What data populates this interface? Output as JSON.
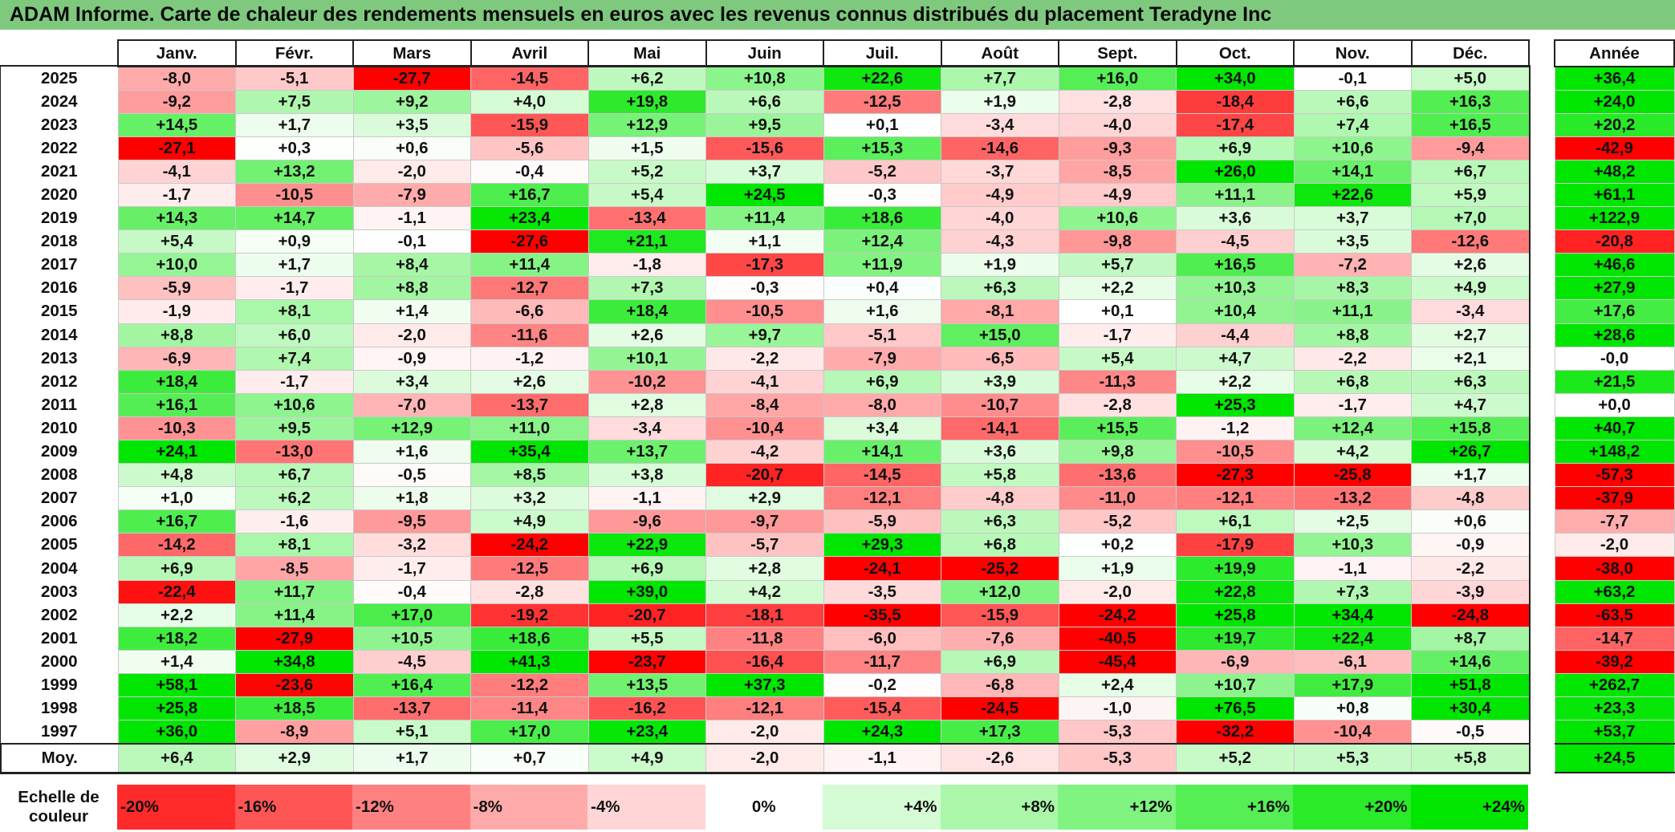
{
  "title": "ADAM Informe. Carte de chaleur des rendements mensuels en euros avec les revenus connus distribués du placement Teradyne Inc",
  "year_header": "Année",
  "avg_label": "Moy.",
  "scale_label": "Echelle de couleur",
  "colors": {
    "negative": "#ff0000",
    "zero": "#ffffff",
    "positive": "#00e600",
    "border": "#222222",
    "title_bar": "#7fc97f"
  },
  "chart_data": {
    "type": "heatmap",
    "title": "ADAM Informe. Carte de chaleur des rendements mensuels en euros avec les revenus connus distribués du placement Teradyne Inc",
    "columns": [
      "Janv.",
      "Févr.",
      "Mars",
      "Avril",
      "Mai",
      "Juin",
      "Juil.",
      "Août",
      "Sept.",
      "Oct.",
      "Nov.",
      "Déc."
    ],
    "rows": [
      {
        "year": "2025",
        "values": [
          "-8,0",
          "-5,1",
          "-27,7",
          "-14,5",
          "+6,2",
          "+10,8",
          "+22,6",
          "+7,7",
          "+16,0",
          "+34,0",
          "-0,1",
          "+5,0"
        ],
        "annual": "+36,4"
      },
      {
        "year": "2024",
        "values": [
          "-9,2",
          "+7,5",
          "+9,2",
          "+4,0",
          "+19,8",
          "+6,6",
          "-12,5",
          "+1,9",
          "-2,8",
          "-18,4",
          "+6,6",
          "+16,3"
        ],
        "annual": "+24,0"
      },
      {
        "year": "2023",
        "values": [
          "+14,5",
          "+1,7",
          "+3,5",
          "-15,9",
          "+12,9",
          "+9,5",
          "+0,1",
          "-3,4",
          "-4,0",
          "-17,4",
          "+7,4",
          "+16,5"
        ],
        "annual": "+20,2"
      },
      {
        "year": "2022",
        "values": [
          "-27,1",
          "+0,3",
          "+0,6",
          "-5,6",
          "+1,5",
          "-15,6",
          "+15,3",
          "-14,6",
          "-9,3",
          "+6,9",
          "+10,6",
          "-9,4"
        ],
        "annual": "-42,9"
      },
      {
        "year": "2021",
        "values": [
          "-4,1",
          "+13,2",
          "-2,0",
          "-0,4",
          "+5,2",
          "+3,7",
          "-5,2",
          "-3,7",
          "-8,5",
          "+26,0",
          "+14,1",
          "+6,7"
        ],
        "annual": "+48,2"
      },
      {
        "year": "2020",
        "values": [
          "-1,7",
          "-10,5",
          "-7,9",
          "+16,7",
          "+5,4",
          "+24,5",
          "-0,3",
          "-4,9",
          "-4,9",
          "+11,1",
          "+22,6",
          "+5,9"
        ],
        "annual": "+61,1"
      },
      {
        "year": "2019",
        "values": [
          "+14,3",
          "+14,7",
          "-1,1",
          "+23,4",
          "-13,4",
          "+11,4",
          "+18,6",
          "-4,0",
          "+10,6",
          "+3,6",
          "+3,7",
          "+7,0"
        ],
        "annual": "+122,9"
      },
      {
        "year": "2018",
        "values": [
          "+5,4",
          "+0,9",
          "-0,1",
          "-27,6",
          "+21,1",
          "+1,1",
          "+12,4",
          "-4,3",
          "-9,8",
          "-4,5",
          "+3,5",
          "-12,6"
        ],
        "annual": "-20,8"
      },
      {
        "year": "2017",
        "values": [
          "+10,0",
          "+1,7",
          "+8,4",
          "+11,4",
          "-1,8",
          "-17,3",
          "+11,9",
          "+1,9",
          "+5,7",
          "+16,5",
          "-7,2",
          "+2,6"
        ],
        "annual": "+46,6"
      },
      {
        "year": "2016",
        "values": [
          "-5,9",
          "-1,7",
          "+8,8",
          "-12,7",
          "+7,3",
          "-0,3",
          "+0,4",
          "+6,3",
          "+2,2",
          "+10,3",
          "+8,3",
          "+4,9"
        ],
        "annual": "+27,9"
      },
      {
        "year": "2015",
        "values": [
          "-1,9",
          "+8,1",
          "+1,4",
          "-6,6",
          "+18,4",
          "-10,5",
          "+1,6",
          "-8,1",
          "+0,1",
          "+10,4",
          "+11,1",
          "-3,4"
        ],
        "annual": "+17,6"
      },
      {
        "year": "2014",
        "values": [
          "+8,8",
          "+6,0",
          "-2,0",
          "-11,6",
          "+2,6",
          "+9,7",
          "-5,1",
          "+15,0",
          "-1,7",
          "-4,4",
          "+8,8",
          "+2,7"
        ],
        "annual": "+28,6"
      },
      {
        "year": "2013",
        "values": [
          "-6,9",
          "+7,4",
          "-0,9",
          "-1,2",
          "+10,1",
          "-2,2",
          "-7,9",
          "-6,5",
          "+5,4",
          "+4,7",
          "-2,2",
          "+2,1"
        ],
        "annual": "-0,0"
      },
      {
        "year": "2012",
        "values": [
          "+18,4",
          "-1,7",
          "+3,4",
          "+2,6",
          "-10,2",
          "-4,1",
          "+6,9",
          "+3,9",
          "-11,3",
          "+2,2",
          "+6,8",
          "+6,3"
        ],
        "annual": "+21,5"
      },
      {
        "year": "2011",
        "values": [
          "+16,1",
          "+10,6",
          "-7,0",
          "-13,7",
          "+2,8",
          "-8,4",
          "-8,0",
          "-10,7",
          "-2,8",
          "+25,3",
          "-1,7",
          "+4,7"
        ],
        "annual": "+0,0"
      },
      {
        "year": "2010",
        "values": [
          "-10,3",
          "+9,5",
          "+12,9",
          "+11,0",
          "-3,4",
          "-10,4",
          "+3,4",
          "-14,1",
          "+15,5",
          "-1,2",
          "+12,4",
          "+15,8"
        ],
        "annual": "+40,7"
      },
      {
        "year": "2009",
        "values": [
          "+24,1",
          "-13,0",
          "+1,6",
          "+35,4",
          "+13,7",
          "-4,2",
          "+14,1",
          "+3,6",
          "+9,8",
          "-10,5",
          "+4,2",
          "+26,7"
        ],
        "annual": "+148,2"
      },
      {
        "year": "2008",
        "values": [
          "+4,8",
          "+6,7",
          "-0,5",
          "+8,5",
          "+3,8",
          "-20,7",
          "-14,5",
          "+5,8",
          "-13,6",
          "-27,3",
          "-25,8",
          "+1,7"
        ],
        "annual": "-57,3"
      },
      {
        "year": "2007",
        "values": [
          "+1,0",
          "+6,2",
          "+1,8",
          "+3,2",
          "-1,1",
          "+2,9",
          "-12,1",
          "-4,8",
          "-11,0",
          "-12,1",
          "-13,2",
          "-4,8"
        ],
        "annual": "-37,9"
      },
      {
        "year": "2006",
        "values": [
          "+16,7",
          "-1,6",
          "-9,5",
          "+4,9",
          "-9,6",
          "-9,7",
          "-5,9",
          "+6,3",
          "-5,2",
          "+6,1",
          "+2,5",
          "+0,6"
        ],
        "annual": "-7,7"
      },
      {
        "year": "2005",
        "values": [
          "-14,2",
          "+8,1",
          "-3,2",
          "-24,2",
          "+22,9",
          "-5,7",
          "+29,3",
          "+6,8",
          "+0,2",
          "-17,9",
          "+10,3",
          "-0,9"
        ],
        "annual": "-2,0"
      },
      {
        "year": "2004",
        "values": [
          "+6,9",
          "-8,5",
          "-1,7",
          "-12,5",
          "+6,9",
          "+2,8",
          "-24,1",
          "-25,2",
          "+1,9",
          "+19,9",
          "-1,1",
          "-2,2"
        ],
        "annual": "-38,0"
      },
      {
        "year": "2003",
        "values": [
          "-22,4",
          "+11,7",
          "-0,4",
          "-2,8",
          "+39,0",
          "+4,2",
          "-3,5",
          "+12,0",
          "-2,0",
          "+22,8",
          "+7,3",
          "-3,9"
        ],
        "annual": "+63,2"
      },
      {
        "year": "2002",
        "values": [
          "+2,2",
          "+11,4",
          "+17,0",
          "-19,2",
          "-20,7",
          "-18,1",
          "-35,5",
          "-15,9",
          "-24,2",
          "+25,8",
          "+34,4",
          "-24,8"
        ],
        "annual": "-63,5"
      },
      {
        "year": "2001",
        "values": [
          "+18,2",
          "-27,9",
          "+10,5",
          "+18,6",
          "+5,5",
          "-11,8",
          "-6,0",
          "-7,6",
          "-40,5",
          "+19,7",
          "+22,4",
          "+8,7"
        ],
        "annual": "-14,7"
      },
      {
        "year": "2000",
        "values": [
          "+1,4",
          "+34,8",
          "-4,5",
          "+41,3",
          "-23,7",
          "-16,4",
          "-11,7",
          "+6,9",
          "-45,4",
          "-6,9",
          "-6,1",
          "+14,6"
        ],
        "annual": "-39,2"
      },
      {
        "year": "1999",
        "values": [
          "+58,1",
          "-23,6",
          "+16,4",
          "-12,2",
          "+13,5",
          "+37,3",
          "-0,2",
          "-6,8",
          "+2,4",
          "+10,7",
          "+17,9",
          "+51,8"
        ],
        "annual": "+262,7"
      },
      {
        "year": "1998",
        "values": [
          "+25,8",
          "+18,5",
          "-13,7",
          "-11,4",
          "-16,2",
          "-12,1",
          "-15,4",
          "-24,5",
          "-1,0",
          "+76,5",
          "+0,8",
          "+30,4"
        ],
        "annual": "+23,3"
      },
      {
        "year": "1997",
        "values": [
          "+36,0",
          "-8,9",
          "+5,1",
          "+17,0",
          "+23,4",
          "-2,0",
          "+24,3",
          "+17,3",
          "-5,3",
          "-32,2",
          "-10,4",
          "-0,5"
        ],
        "annual": "+53,7"
      }
    ],
    "averages": [
      "+6,4",
      "+2,9",
      "+1,7",
      "+0,7",
      "+4,9",
      "-2,0",
      "-1,1",
      "-2,6",
      "-5,3",
      "+5,2",
      "+5,3",
      "+5,8"
    ],
    "annual_average": "+24,5",
    "color_scale": [
      "-20%",
      "-16%",
      "-12%",
      "-8%",
      "-4%",
      "0%",
      "+4%",
      "+8%",
      "+12%",
      "+16%",
      "+20%",
      "+24%"
    ],
    "color_scale_range": [
      -20,
      24
    ]
  }
}
